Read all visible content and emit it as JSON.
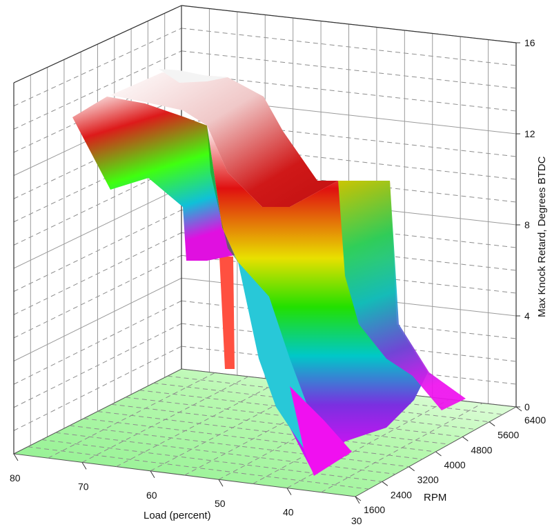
{
  "chart_data": {
    "type": "surface",
    "title": "",
    "xlabel": "Load (percent)",
    "ylabel": "RPM",
    "zlabel": "Max Knock Retard, Degrees BTDC",
    "x_ticks": [
      "80",
      "70",
      "60",
      "50",
      "40",
      "30"
    ],
    "y_ticks": [
      "1600",
      "2400",
      "3200",
      "4000",
      "4800",
      "5600",
      "6400"
    ],
    "z_ticks": [
      "0",
      "4",
      "8",
      "12",
      "16"
    ],
    "xlim": [
      30,
      80
    ],
    "ylim": [
      1600,
      6400
    ],
    "zlim": [
      0,
      16
    ],
    "floor_color": "#9df59d",
    "colormap": [
      "#ff00ff",
      "#00ffff",
      "#00ff00",
      "#ffff00",
      "#ff0000",
      "#ffffff"
    ],
    "series": [
      {
        "name": "",
        "points": [
          {
            "load": 80,
            "rpm": 6400,
            "retard": 14
          },
          {
            "load": 75,
            "rpm": 6400,
            "retard": 15
          },
          {
            "load": 70,
            "rpm": 5600,
            "retard": 13
          },
          {
            "load": 65,
            "rpm": 4800,
            "retard": 12
          },
          {
            "load": 60,
            "rpm": 4000,
            "retard": 9
          },
          {
            "load": 55,
            "rpm": 3600,
            "retard": 6
          },
          {
            "load": 50,
            "rpm": 3200,
            "retard": 4
          },
          {
            "load": 45,
            "rpm": 2800,
            "retard": 2
          },
          {
            "load": 40,
            "rpm": 2400,
            "retard": 0.5
          },
          {
            "load": 35,
            "rpm": 3200,
            "retard": 0
          }
        ]
      }
    ]
  }
}
